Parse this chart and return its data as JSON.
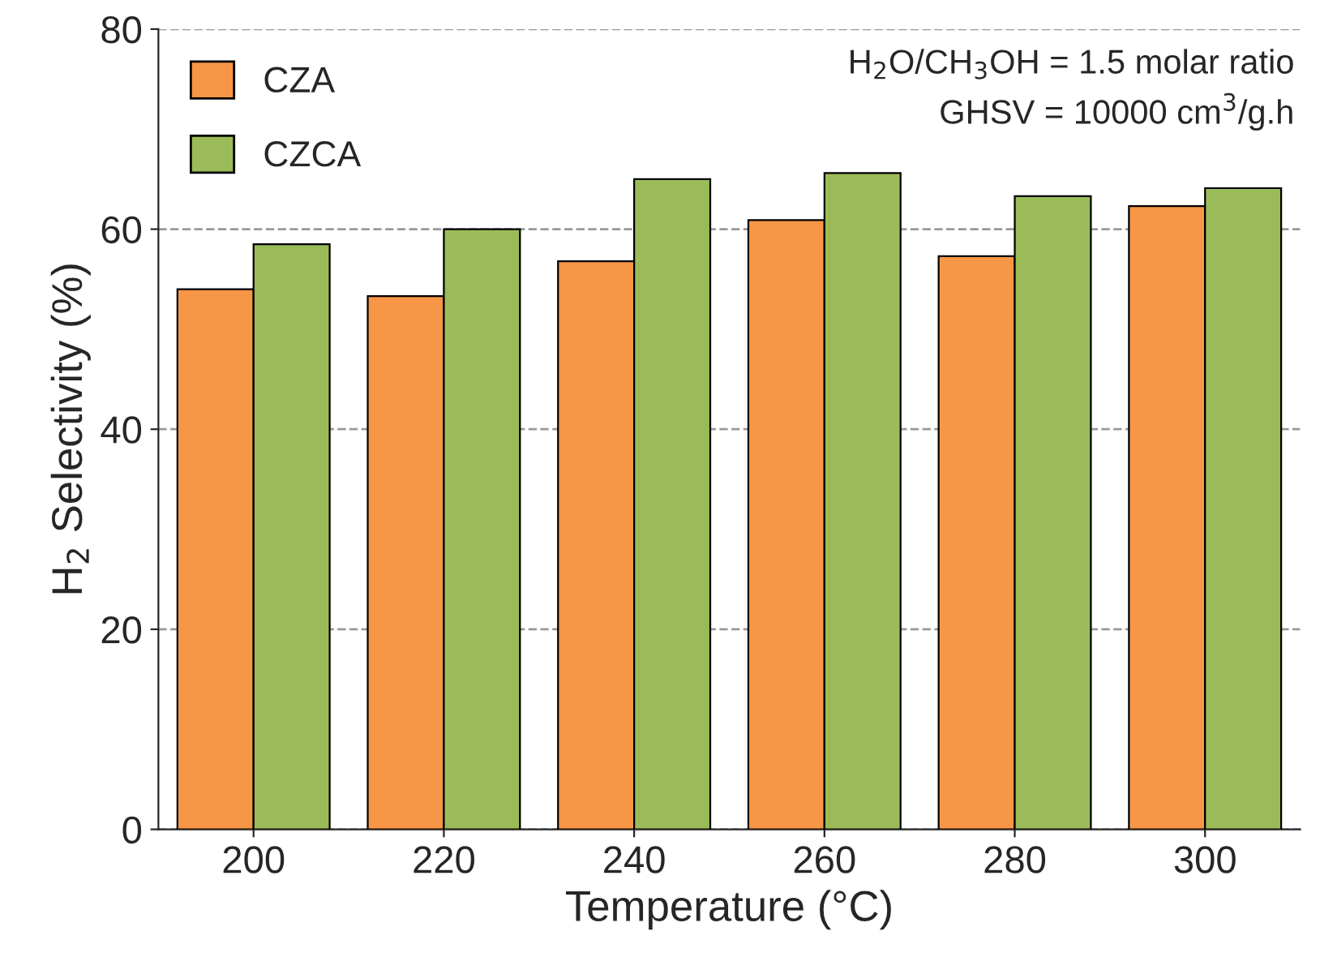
{
  "chart_data": {
    "type": "bar",
    "xlabel": "Temperature (°C)",
    "ylabel": "H$_{2}$ Selectivity (%)",
    "categories": [
      "200",
      "220",
      "240",
      "260",
      "280",
      "300"
    ],
    "series": [
      {
        "name": "CZA",
        "color": "#f79646",
        "values": [
          54,
          53.3,
          56.8,
          60.9,
          57.3,
          62.3
        ]
      },
      {
        "name": "CZCA",
        "color": "#9bbb59",
        "values": [
          58.5,
          60,
          65,
          65.6,
          63.3,
          64.1
        ]
      }
    ],
    "ylim": [
      0,
      80
    ],
    "yticks": [
      0,
      20,
      40,
      60,
      80
    ],
    "grid": "y",
    "legend": "top left",
    "annotations": [
      "H$_{2}$O/CH$_{3}$OH = 1.5 molar ratio",
      "GHSV = 10000 cm$^{3}$/g.h"
    ]
  }
}
